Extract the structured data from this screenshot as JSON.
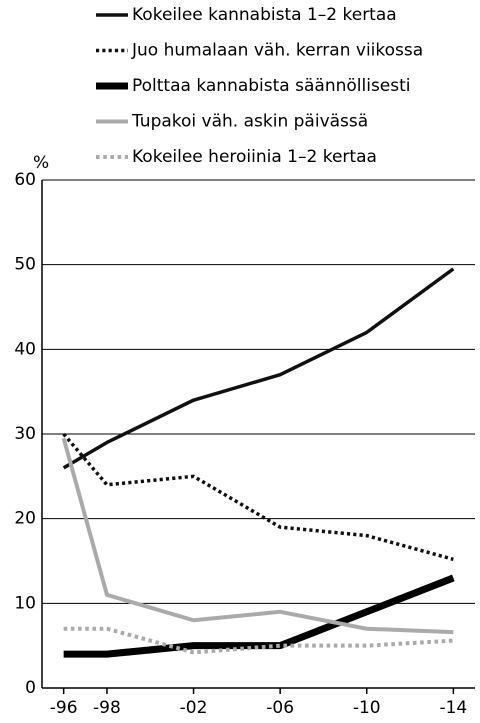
{
  "chart_data": {
    "type": "line",
    "ylabel": "%",
    "x": [
      1996,
      1998,
      2002,
      2006,
      2010,
      2014
    ],
    "xlim": [
      1995,
      2015
    ],
    "xticks": [
      {
        "value": 1996,
        "label": "-96"
      },
      {
        "value": 1998,
        "label": "-98"
      },
      {
        "value": 2002,
        "label": "-02"
      },
      {
        "value": 2006,
        "label": "-06"
      },
      {
        "value": 2010,
        "label": "-10"
      },
      {
        "value": 2014,
        "label": "-14"
      }
    ],
    "ylim": [
      0,
      60
    ],
    "yticks": [
      0,
      10,
      20,
      30,
      40,
      50,
      60
    ],
    "grid": true,
    "series": [
      {
        "name": "Kokeilee kannabista 1–2 kertaa",
        "color": "#111111",
        "style": "solid",
        "width": 3.5,
        "values": [
          26,
          29,
          34,
          37,
          42,
          49.5
        ]
      },
      {
        "name": "Juo humalaan väh. kerran viikossa",
        "color": "#111111",
        "style": "dotted",
        "width": 3.5,
        "values": [
          30,
          24,
          25,
          19,
          18,
          15.2
        ]
      },
      {
        "name": "Polttaa kannabista säännöllisesti",
        "color": "#000000",
        "style": "solid",
        "width": 7,
        "values": [
          4,
          4,
          5,
          5,
          9,
          13
        ]
      },
      {
        "name": "Tupakoi väh. askin päivässä",
        "color": "#aaaaaa",
        "style": "solid",
        "width": 4,
        "values": [
          29.5,
          11,
          8,
          9,
          7,
          6.6
        ]
      },
      {
        "name": "Kokeilee heroiinia 1–2 kertaa",
        "color": "#aaaaaa",
        "style": "dotted",
        "width": 4,
        "values": [
          7,
          7,
          4.2,
          5,
          5,
          5.6
        ]
      }
    ]
  }
}
